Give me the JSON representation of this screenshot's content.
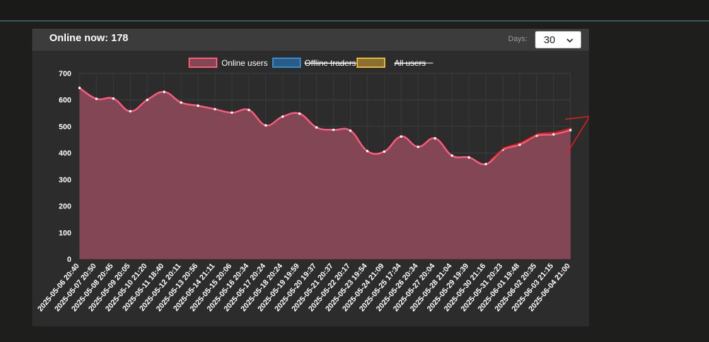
{
  "header": {
    "online_now": "Online now: 178",
    "days_label": "Days:",
    "days_value": "30"
  },
  "colors": {
    "online": "#ff5c7c",
    "online_fill": "#824654",
    "offline": "#2e8fd6",
    "all": "#e8b83a",
    "annotation": "#e0201d"
  },
  "chart_data": {
    "type": "area",
    "ylim": [
      0,
      700
    ],
    "yticks": [
      0,
      100,
      200,
      300,
      400,
      500,
      600,
      700
    ],
    "grid": true,
    "legend_position": "top",
    "legend": [
      {
        "name": "Online users",
        "hidden": false,
        "color_key": "online"
      },
      {
        "name": "Offline traders",
        "hidden": true,
        "color_key": "offline"
      },
      {
        "name": "All users",
        "hidden": true,
        "color_key": "all"
      }
    ],
    "categories": [
      "2025-05-06 20:40",
      "2025-05-07 20:50",
      "2025-05-08 20:45",
      "2025-05-09 20:05",
      "2025-05-10 21:20",
      "2025-05-11 18:40",
      "2025-05-12 20:11",
      "2025-05-13 20:56",
      "2025-05-14 21:11",
      "2025-05-15 20:06",
      "2025-05-16 20:34",
      "2025-05-17 20:24",
      "2025-05-18 20:24",
      "2025-05-19 19:59",
      "2025-05-20 19:37",
      "2025-05-21 20:37",
      "2025-05-22 20:17",
      "2025-05-23 19:54",
      "2025-05-24 21:09",
      "2025-05-25 17:34",
      "2025-05-26 20:34",
      "2025-05-27 20:04",
      "2025-05-28 21:04",
      "2025-05-29 19:39",
      "2025-05-30 21:16",
      "2025-05-31 20:23",
      "2025-06-01 19:48",
      "2025-06-02 20:35",
      "2025-06-03 21:15",
      "2025-06-04 21:00"
    ],
    "series": [
      {
        "name": "Online users",
        "values": [
          645,
          604,
          605,
          557,
          600,
          630,
          590,
          578,
          565,
          552,
          562,
          504,
          537,
          548,
          496,
          487,
          484,
          407,
          405,
          462,
          423,
          455,
          390,
          383,
          358,
          412,
          431,
          465,
          470,
          486
        ]
      }
    ]
  }
}
